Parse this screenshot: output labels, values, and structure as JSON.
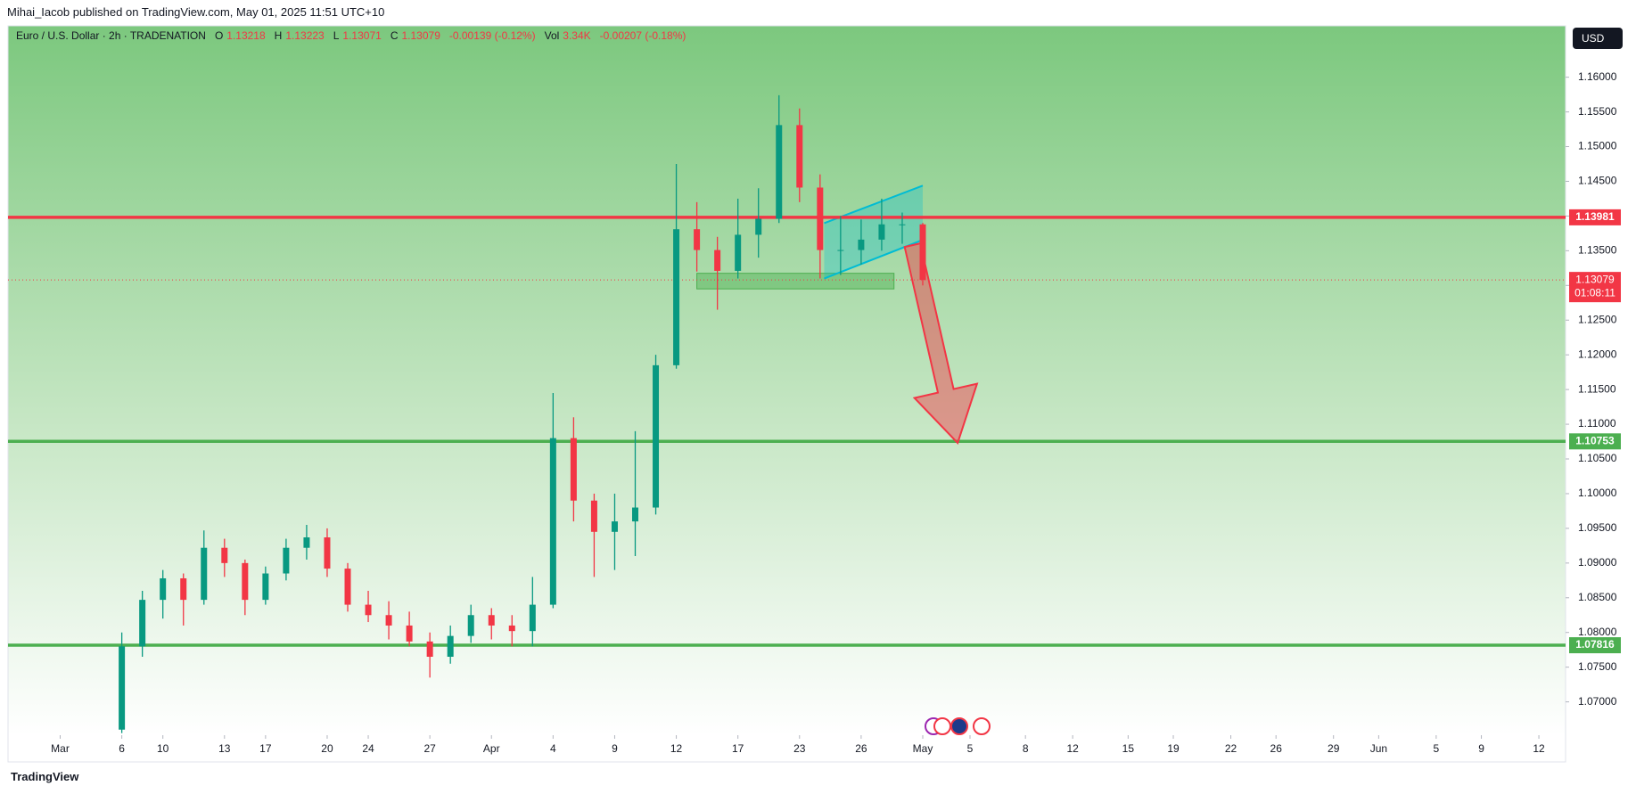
{
  "header": {
    "publisher": "Mihai_Iacob published on TradingView.com, May 01, 2025 11:51 UTC+10",
    "symbol": "Euro / U.S. Dollar · 2h · TRADENATION",
    "ohlc": [
      {
        "key": "O",
        "value": 1.13218
      },
      {
        "key": "H",
        "value": 1.13223
      },
      {
        "key": "L",
        "value": 1.13071
      },
      {
        "key": "C",
        "value": 1.13079
      }
    ],
    "change": "-0.00139 (-0.12%)",
    "vol_key": "Vol",
    "vol": "3.34K",
    "vol_change": "-0.00207 (-0.18%)",
    "currency": "USD",
    "brand": "TradingView"
  },
  "chart_data": {
    "type": "candlestick",
    "x": [
      3,
      4,
      5,
      6,
      7,
      8,
      9,
      10,
      11,
      12,
      13,
      14,
      15,
      16,
      17,
      18,
      19,
      20,
      21,
      22,
      23,
      24,
      25,
      26,
      27,
      28,
      29,
      30,
      31,
      32,
      33,
      34,
      35,
      36,
      37,
      38,
      39,
      40,
      41,
      42
    ],
    "open": [
      1.066,
      1.078,
      1.0847,
      1.0878,
      1.0847,
      1.0922,
      1.09,
      1.0847,
      1.0885,
      1.0922,
      1.0937,
      1.0892,
      1.084,
      1.0825,
      1.081,
      1.0787,
      1.0765,
      1.0795,
      1.0825,
      1.081,
      1.0802,
      1.084,
      1.108,
      1.099,
      1.0945,
      1.096,
      1.098,
      1.1185,
      1.1381,
      1.1351,
      1.1321,
      1.1373,
      1.1396,
      1.1531,
      1.1441,
      1.1351,
      1.1351,
      1.1366,
      1.1388,
      1.1388
    ],
    "high": [
      1.08,
      1.086,
      1.089,
      1.0885,
      1.0947,
      1.0935,
      1.0905,
      1.0895,
      1.0935,
      1.0955,
      1.095,
      1.09,
      1.086,
      1.0845,
      1.083,
      1.08,
      1.081,
      1.084,
      1.0835,
      1.0825,
      1.088,
      1.1145,
      1.111,
      1.1,
      1.1,
      1.109,
      1.12,
      1.1475,
      1.142,
      1.137,
      1.1425,
      1.144,
      1.1574,
      1.1555,
      1.146,
      1.14,
      1.1395,
      1.1425,
      1.1405,
      1.139
    ],
    "low": [
      1.0655,
      1.0765,
      1.082,
      1.081,
      1.084,
      1.088,
      1.0825,
      1.084,
      1.0875,
      1.0905,
      1.088,
      1.083,
      1.0815,
      1.079,
      1.078,
      1.0735,
      1.0755,
      1.0785,
      1.079,
      1.078,
      1.078,
      1.0835,
      1.096,
      1.088,
      1.089,
      1.091,
      1.097,
      1.118,
      1.132,
      1.1265,
      1.131,
      1.134,
      1.139,
      1.142,
      1.131,
      1.1315,
      1.133,
      1.135,
      1.136,
      1.13
    ],
    "close": [
      1.078,
      1.0847,
      1.0878,
      1.0847,
      1.0922,
      1.09,
      1.0847,
      1.0885,
      1.0922,
      1.0937,
      1.0892,
      1.084,
      1.0825,
      1.081,
      1.0787,
      1.0765,
      1.0795,
      1.0825,
      1.081,
      1.0802,
      1.084,
      1.108,
      1.099,
      1.0945,
      1.096,
      1.098,
      1.1185,
      1.1381,
      1.1351,
      1.1321,
      1.1373,
      1.1396,
      1.1531,
      1.1441,
      1.1351,
      1.1351,
      1.1366,
      1.1388,
      1.1388,
      1.13079
    ],
    "up_color": "#089981",
    "down_color": "#f23645",
    "xlim": [
      -2.54,
      73.3
    ],
    "xticks": [
      {
        "value": 0,
        "label": "Mar"
      },
      {
        "value": 3,
        "label": "6"
      },
      {
        "value": 5,
        "label": "10"
      },
      {
        "value": 8,
        "label": "13"
      },
      {
        "value": 10,
        "label": "17"
      },
      {
        "value": 13,
        "label": "20"
      },
      {
        "value": 15,
        "label": "24"
      },
      {
        "value": 18,
        "label": "27"
      },
      {
        "value": 21,
        "label": "Apr"
      },
      {
        "value": 24,
        "label": "4"
      },
      {
        "value": 27,
        "label": "9"
      },
      {
        "value": 30,
        "label": "12"
      },
      {
        "value": 33,
        "label": "17"
      },
      {
        "value": 36,
        "label": "23"
      },
      {
        "value": 39,
        "label": "26"
      },
      {
        "value": 42,
        "label": "May"
      },
      {
        "value": 44.3,
        "label": "5"
      },
      {
        "value": 47,
        "label": "8"
      },
      {
        "value": 49.3,
        "label": "12"
      },
      {
        "value": 52,
        "label": "15"
      },
      {
        "value": 54.2,
        "label": "19"
      },
      {
        "value": 57,
        "label": "22"
      },
      {
        "value": 59.2,
        "label": "26"
      },
      {
        "value": 62,
        "label": "29"
      },
      {
        "value": 64.2,
        "label": "Jun"
      },
      {
        "value": 67,
        "label": "5"
      },
      {
        "value": 69.2,
        "label": "9"
      },
      {
        "value": 72,
        "label": "12"
      }
    ],
    "ylim": [
      1.0652,
      1.1674
    ],
    "yticks": [
      {
        "value": 1.07,
        "label": "1.07000"
      },
      {
        "value": 1.075,
        "label": "1.07500"
      },
      {
        "value": 1.08,
        "label": "1.08000"
      },
      {
        "value": 1.085,
        "label": "1.08500"
      },
      {
        "value": 1.09,
        "label": "1.09000"
      },
      {
        "value": 1.095,
        "label": "1.09500"
      },
      {
        "value": 1.1,
        "label": "1.10000"
      },
      {
        "value": 1.105,
        "label": "1.10500"
      },
      {
        "value": 1.11,
        "label": "1.11000"
      },
      {
        "value": 1.115,
        "label": "1.11500"
      },
      {
        "value": 1.12,
        "label": "1.12000"
      },
      {
        "value": 1.125,
        "label": "1.12500"
      },
      {
        "value": 1.13,
        "label": "1.13000"
      },
      {
        "value": 1.135,
        "label": "1.13500"
      },
      {
        "value": 1.14,
        "label": "1.14000"
      },
      {
        "value": 1.145,
        "label": "1.14500"
      },
      {
        "value": 1.15,
        "label": "1.15000"
      },
      {
        "value": 1.155,
        "label": "1.15500"
      },
      {
        "value": 1.16,
        "label": "1.16000"
      }
    ],
    "grid": false,
    "levels": [
      {
        "value": 1.13981,
        "color": "#f23645"
      },
      {
        "value": 1.10753,
        "color": "#4caf50"
      },
      {
        "value": 1.07816,
        "color": "#4caf50"
      }
    ],
    "last_price": 1.13079,
    "countdown": "01:08:11",
    "last_color": "#f23645",
    "zone": {
      "x": [
        31.0,
        40.6
      ],
      "y": [
        1.1295,
        1.13175
      ],
      "color": "#4caf50"
    },
    "channel": {
      "x": [
        37.2,
        42.0
      ],
      "upper": [
        1.13897,
        1.14438
      ],
      "lower": [
        1.131,
        1.13656
      ],
      "color": "#00bcd4"
    },
    "arrow": {
      "x": [
        41.5,
        43.7
      ],
      "y": [
        1.1358,
        1.1073
      ],
      "color": "#f23645"
    }
  }
}
